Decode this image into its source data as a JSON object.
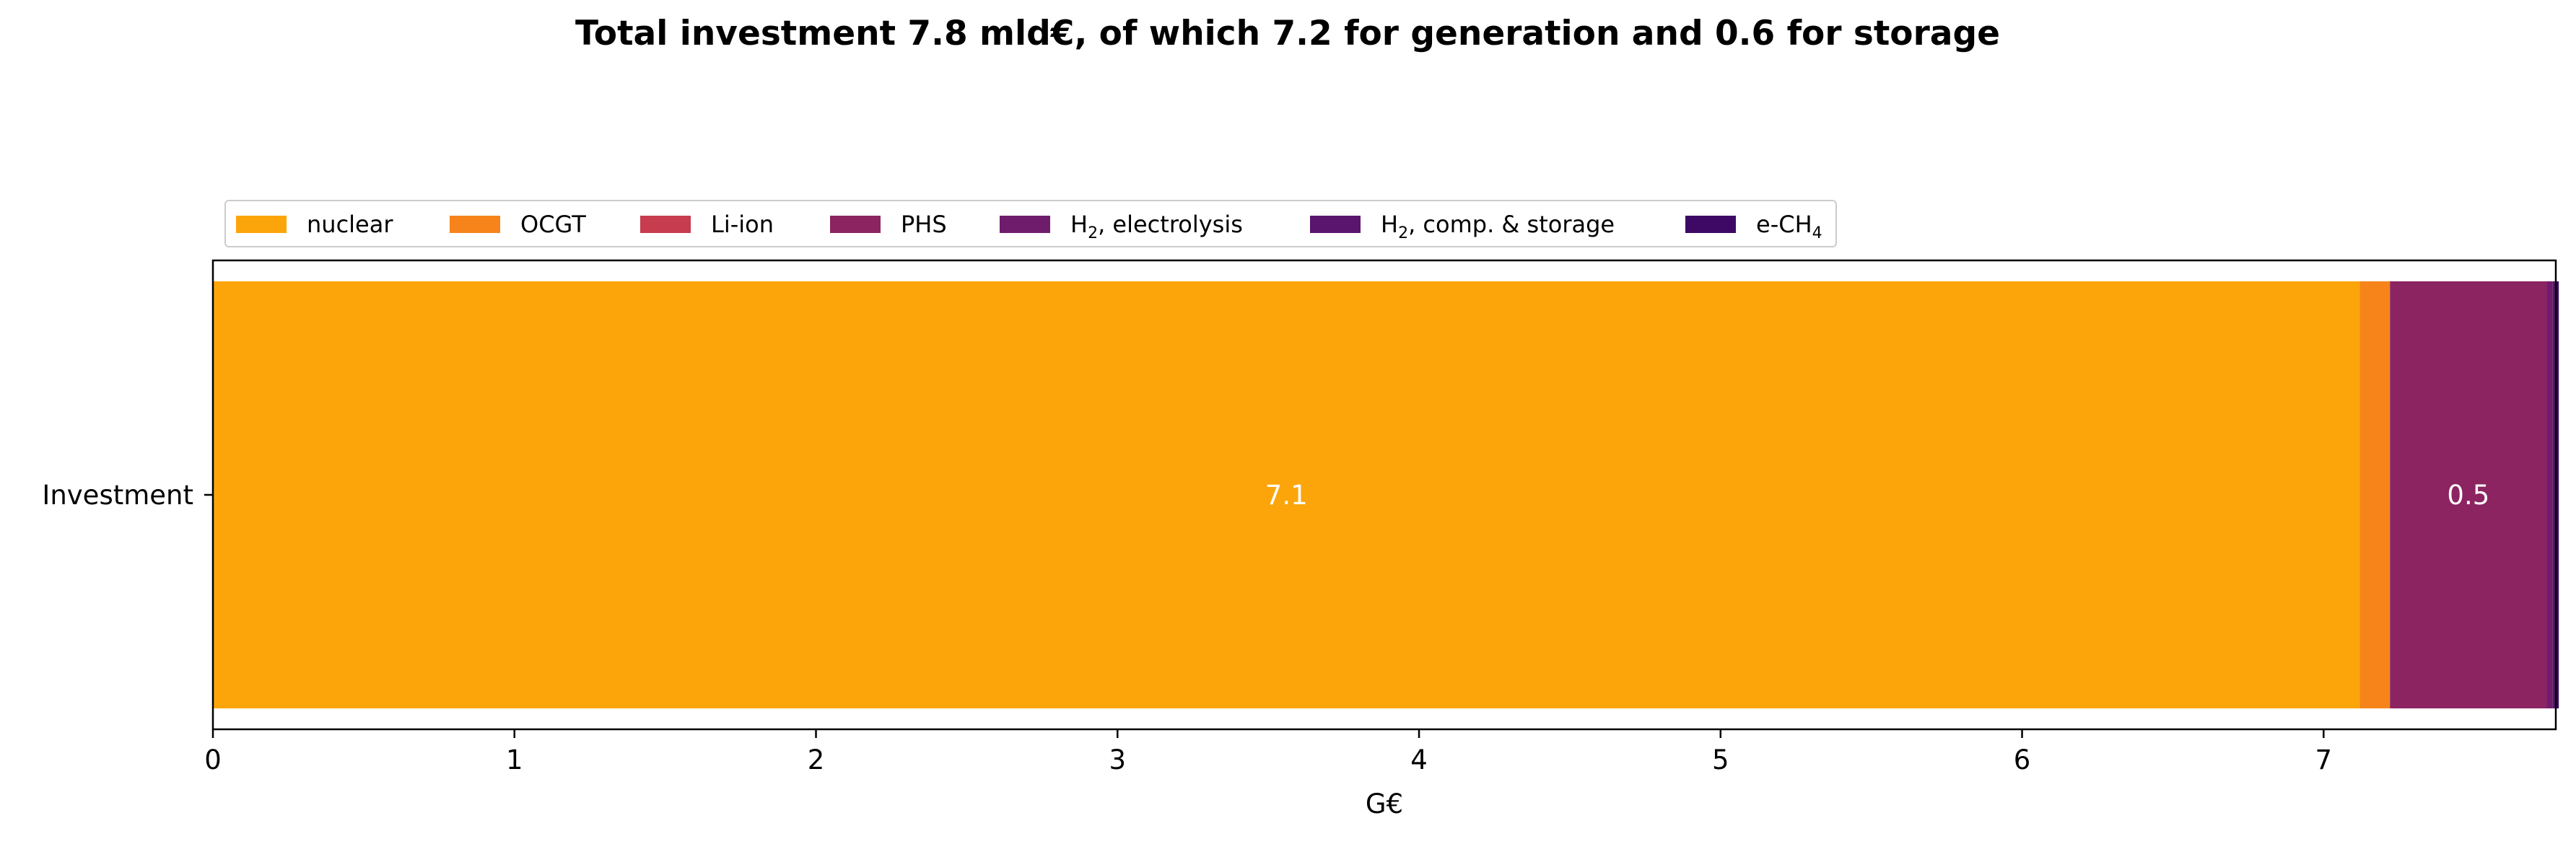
{
  "chart_data": {
    "type": "bar",
    "orientation": "horizontal",
    "stacked": true,
    "title": "Total investment 7.8 mld€, of which 7.2 for generation and 0.6 for storage",
    "xlabel": "G€",
    "ylabel": "",
    "categories": [
      "Investment"
    ],
    "xlim": [
      0,
      7.77
    ],
    "xticks": [
      0,
      1,
      2,
      3,
      4,
      5,
      6,
      7
    ],
    "grid": false,
    "legend_position": "top-left",
    "series": [
      {
        "name": "nuclear",
        "label_main": "nuclear",
        "label_sub": "",
        "label_tail": "",
        "values": [
          7.12
        ],
        "color": "#fca50a"
      },
      {
        "name": "OCGT",
        "label_main": "OCGT",
        "label_sub": "",
        "label_tail": "",
        "values": [
          0.1
        ],
        "color": "#f6841b"
      },
      {
        "name": "Li-ion",
        "label_main": "Li-ion",
        "label_sub": "",
        "label_tail": "",
        "values": [
          0.0
        ],
        "color": "#c73c4f"
      },
      {
        "name": "PHS",
        "label_main": "PHS",
        "label_sub": "",
        "label_tail": "",
        "values": [
          0.52
        ],
        "color": "#8c2461"
      },
      {
        "name": "H2, electrolysis",
        "label_main": "H",
        "label_sub": "2",
        "label_tail": ", electrolysis",
        "values": [
          0.02
        ],
        "color": "#701c6d"
      },
      {
        "name": "H2, comp. & storage",
        "label_main": "H",
        "label_sub": "2",
        "label_tail": ", comp. & storage",
        "values": [
          0.01
        ],
        "color": "#5a156e"
      },
      {
        "name": "e-CH4",
        "label_main": "e-CH",
        "label_sub": "4",
        "label_tail": "",
        "values": [
          0.01
        ],
        "color": "#3d0965"
      }
    ],
    "annotations": [
      {
        "text": "7.1",
        "x": 3.56,
        "color": "#ffffff"
      },
      {
        "text": "0.5",
        "x": 7.48,
        "color": "#ffffff"
      }
    ]
  }
}
